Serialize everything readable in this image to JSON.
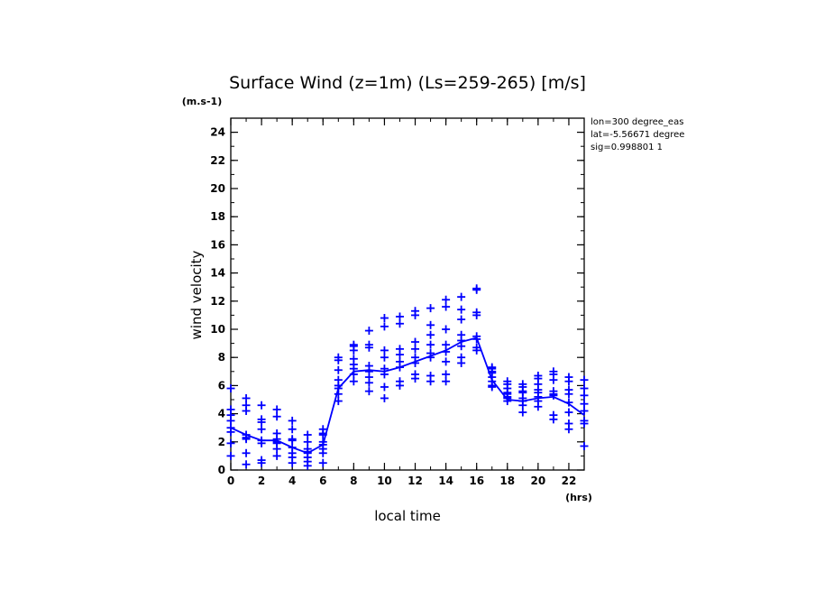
{
  "chart_data": {
    "type": "scatter",
    "title": "Surface Wind (z=1m) (Ls=259-265) [m/s]",
    "y_unit": "(m.s-1)",
    "x_unit": "(hrs)",
    "xlabel": "local time",
    "ylabel": "wind velocity",
    "xlim": [
      0,
      23
    ],
    "ylim": [
      0,
      25
    ],
    "x_ticks": [
      0,
      2,
      4,
      6,
      8,
      10,
      12,
      14,
      16,
      18,
      20,
      22
    ],
    "y_ticks": [
      0,
      2,
      4,
      6,
      8,
      10,
      12,
      14,
      16,
      18,
      20,
      22,
      24
    ],
    "info": [
      "lon=300 degree_eas",
      "lat=-5.56671 degree",
      "sig=0.998801 1"
    ],
    "grid": false,
    "series_color": "#0000ff",
    "scatter": [
      {
        "x": 0,
        "y": [
          1.0,
          1.9,
          2.7,
          3.0,
          3.5,
          3.9,
          4.3,
          5.8
        ]
      },
      {
        "x": 1,
        "y": [
          0.4,
          1.2,
          2.2,
          2.3,
          2.5,
          4.2,
          4.6,
          5.1
        ]
      },
      {
        "x": 2,
        "y": [
          0.5,
          0.7,
          1.9,
          2.1,
          2.9,
          3.4,
          3.6,
          4.6
        ]
      },
      {
        "x": 3,
        "y": [
          1.0,
          1.5,
          1.9,
          2.0,
          2.2,
          2.6,
          3.8,
          4.3
        ]
      },
      {
        "x": 4,
        "y": [
          0.5,
          0.9,
          1.2,
          1.6,
          2.1,
          2.2,
          2.9,
          3.5
        ]
      },
      {
        "x": 5,
        "y": [
          0.3,
          0.6,
          0.9,
          1.2,
          1.3,
          1.5,
          2.0,
          2.5
        ]
      },
      {
        "x": 6,
        "y": [
          0.5,
          1.2,
          1.5,
          1.8,
          2.0,
          2.5,
          2.6,
          2.9
        ]
      },
      {
        "x": 7,
        "y": [
          4.9,
          5.4,
          5.8,
          6.0,
          6.4,
          7.1,
          7.8,
          8.0
        ]
      },
      {
        "x": 8,
        "y": [
          6.3,
          6.8,
          7.2,
          7.5,
          7.9,
          8.5,
          8.8,
          8.9
        ]
      },
      {
        "x": 9,
        "y": [
          5.6,
          6.2,
          6.6,
          7.0,
          7.4,
          8.7,
          8.9,
          9.9
        ]
      },
      {
        "x": 10,
        "y": [
          5.1,
          5.9,
          6.8,
          7.2,
          8.0,
          8.5,
          10.2,
          10.8
        ]
      },
      {
        "x": 11,
        "y": [
          6.0,
          6.3,
          7.3,
          7.7,
          8.2,
          8.6,
          10.4,
          10.9
        ]
      },
      {
        "x": 12,
        "y": [
          6.5,
          6.8,
          7.6,
          8.0,
          8.6,
          9.1,
          11.0,
          11.3
        ]
      },
      {
        "x": 13,
        "y": [
          6.3,
          6.7,
          8.0,
          8.3,
          8.9,
          9.6,
          10.3,
          11.5
        ]
      },
      {
        "x": 14,
        "y": [
          6.3,
          6.8,
          7.7,
          8.4,
          8.9,
          10.0,
          11.6,
          12.1
        ]
      },
      {
        "x": 15,
        "y": [
          7.6,
          8.0,
          8.8,
          9.2,
          9.6,
          10.7,
          11.4,
          12.3
        ]
      },
      {
        "x": 16,
        "y": [
          8.5,
          8.7,
          9.5,
          11.0,
          11.2,
          12.8,
          12.9,
          9.3
        ]
      },
      {
        "x": 17,
        "y": [
          5.9,
          6.0,
          6.3,
          6.6,
          6.9,
          7.2,
          7.3,
          7.0
        ]
      },
      {
        "x": 18,
        "y": [
          4.9,
          5.1,
          5.2,
          5.4,
          5.5,
          5.8,
          6.1,
          6.3
        ]
      },
      {
        "x": 19,
        "y": [
          4.1,
          4.6,
          4.9,
          5.1,
          5.5,
          5.6,
          5.9,
          6.1
        ]
      },
      {
        "x": 20,
        "y": [
          4.5,
          4.9,
          5.2,
          5.5,
          5.7,
          6.1,
          6.5,
          6.7
        ]
      },
      {
        "x": 21,
        "y": [
          3.6,
          3.9,
          5.3,
          5.4,
          5.6,
          6.4,
          6.8,
          7.0
        ]
      },
      {
        "x": 22,
        "y": [
          2.9,
          3.3,
          4.1,
          4.8,
          5.4,
          5.7,
          6.3,
          6.6
        ]
      },
      {
        "x": 23,
        "y": [
          1.7,
          3.3,
          3.5,
          4.2,
          4.7,
          5.3,
          5.8,
          6.4
        ]
      }
    ],
    "mean_line": {
      "x": [
        0,
        1,
        2,
        3,
        4,
        5,
        6,
        7,
        8,
        9,
        10,
        11,
        12,
        13,
        14,
        15,
        16,
        17,
        18,
        19,
        20,
        21,
        22,
        23
      ],
      "y": [
        3.0,
        2.5,
        2.1,
        2.1,
        1.6,
        1.2,
        1.8,
        5.8,
        7.0,
        7.1,
        7.0,
        7.3,
        7.7,
        8.1,
        8.5,
        9.1,
        9.4,
        6.4,
        5.0,
        4.9,
        5.1,
        5.2,
        4.7,
        3.9
      ]
    }
  }
}
